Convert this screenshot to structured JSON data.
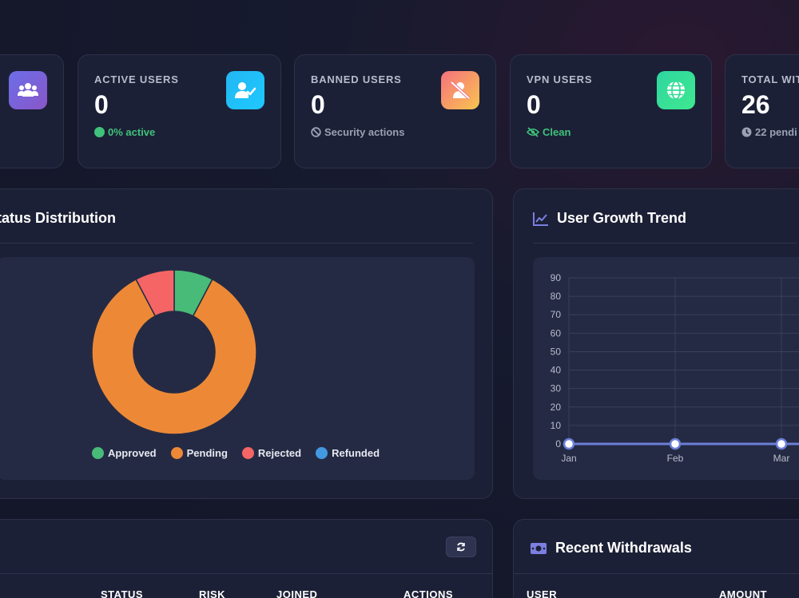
{
  "stats": [
    {
      "label": "",
      "value": "",
      "sub": "",
      "icon": "users-icon"
    },
    {
      "label": "ACTIVE USERS",
      "value": "0",
      "sub": "0% active",
      "icon": "user-check-icon",
      "sub_icon": "green-dot-icon"
    },
    {
      "label": "BANNED USERS",
      "value": "0",
      "sub": "Security actions",
      "icon": "user-slash-icon",
      "sub_icon": "ban-icon"
    },
    {
      "label": "VPN USERS",
      "value": "0",
      "sub": "Clean",
      "icon": "globe-icon",
      "sub_icon": "eye-slash-icon"
    },
    {
      "label": "TOTAL WIT",
      "value": "26",
      "sub": "22 pendi",
      "icon": "",
      "sub_icon": "clock-icon"
    }
  ],
  "status_panel": {
    "title": "tatus Distribution",
    "legend": [
      {
        "label": "Approved",
        "color": "#48bb78"
      },
      {
        "label": "Pending",
        "color": "#ed8936"
      },
      {
        "label": "Rejected",
        "color": "#f56565"
      },
      {
        "label": "Refunded",
        "color": "#4299e1"
      }
    ]
  },
  "growth_panel": {
    "title": "User Growth Trend",
    "icon": "chart-line-icon"
  },
  "users_table": {
    "headers": [
      "STATUS",
      "RISK",
      "JOINED",
      "ACTIONS"
    ],
    "refresh_icon": "refresh-icon"
  },
  "withdrawals_panel": {
    "title": "Recent Withdrawals",
    "icon": "money-bill-icon",
    "headers": [
      "USER",
      "AMOUNT"
    ]
  },
  "chart_data": [
    {
      "type": "pie",
      "title": "",
      "categories": [
        "Approved",
        "Pending",
        "Rejected",
        "Refunded"
      ],
      "values": [
        2,
        22,
        2,
        0
      ],
      "colors": [
        "#48bb78",
        "#ed8936",
        "#f56565",
        "#4299e1"
      ],
      "donut": true,
      "legend": "bottom"
    },
    {
      "type": "line",
      "title": "",
      "categories": [
        "Jan",
        "Feb",
        "Mar"
      ],
      "series": [
        {
          "values": [
            0,
            0,
            0
          ]
        }
      ],
      "yticks": [
        0,
        10,
        20,
        30,
        40,
        50,
        60,
        70,
        80,
        90
      ],
      "ylim": [
        0,
        90
      ],
      "grid": true,
      "color": "#6b7fd7"
    }
  ]
}
